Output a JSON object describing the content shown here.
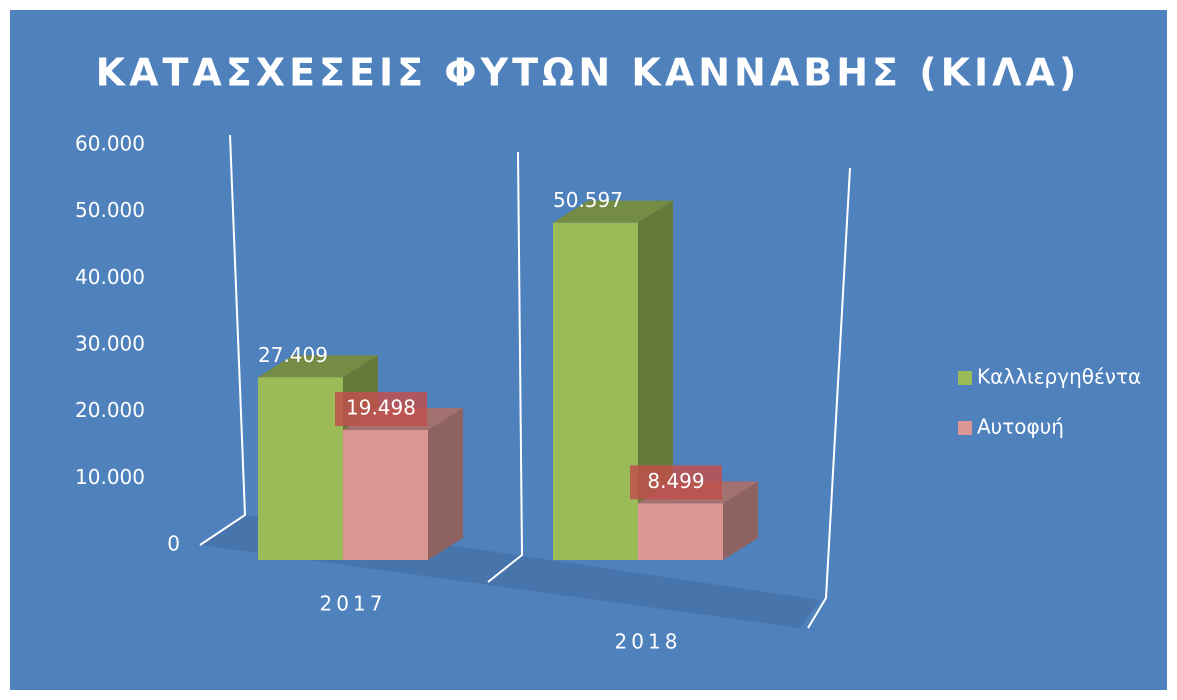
{
  "chart_data": {
    "type": "bar3d",
    "title": "ΚΑΤΑΣΧΕΣΕΙΣ ΦΥΤΩΝ ΚΑΝΝΑΒΗΣ (ΚΙΛΑ)",
    "categories": [
      "2017",
      "2018"
    ],
    "series": [
      {
        "name": "Καλλιεργηθέντα",
        "color": "#9bbb59",
        "values": [
          27409,
          50597
        ],
        "value_labels": [
          "27.409",
          "50.597"
        ]
      },
      {
        "name": "Αυτοφυή",
        "color": "#d99694",
        "values": [
          19498,
          8499
        ],
        "value_labels": [
          "19.498",
          "8.499"
        ]
      }
    ],
    "ylim": [
      0,
      60000
    ],
    "yticks": [
      0,
      {
        "value": 10000,
        "label": "10.000"
      },
      {
        "value": 20000,
        "label": "20.000"
      },
      {
        "value": 30000,
        "label": "30.000"
      },
      {
        "value": 40000,
        "label": "40.000"
      },
      {
        "value": 50000,
        "label": "50.000"
      },
      {
        "value": 60000,
        "label": "60.000"
      }
    ],
    "legend": "right"
  }
}
